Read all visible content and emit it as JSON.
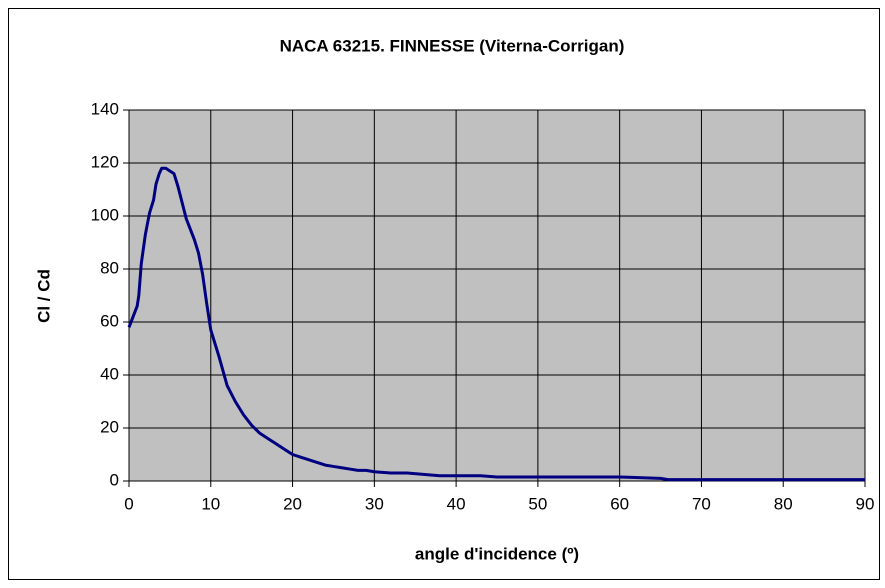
{
  "chart_data": {
    "type": "line",
    "title": "NACA 63215. FINNESSE (Viterna-Corrigan)",
    "xlabel": "angle d'incidence (º)",
    "ylabel": "Cl / Cd",
    "x": [
      0,
      0.5,
      1,
      1.2,
      1.5,
      2,
      2.5,
      3,
      3.3,
      3.7,
      4,
      4.5,
      5,
      5.5,
      6,
      7,
      8,
      8.5,
      9,
      9.5,
      10,
      11,
      12,
      13,
      14,
      15,
      16,
      17,
      18,
      19,
      20,
      21,
      22,
      23,
      24,
      25,
      26,
      27,
      28,
      29,
      30,
      32,
      34,
      36,
      38,
      40,
      43,
      45,
      50,
      55,
      60,
      65,
      66,
      70,
      80,
      90
    ],
    "values": [
      58,
      62,
      66,
      70,
      82,
      93,
      101,
      106,
      112,
      116,
      118,
      118,
      117,
      116,
      111,
      99,
      91,
      86,
      78,
      67,
      57,
      47,
      36,
      30,
      25,
      21,
      18,
      16,
      14,
      12,
      10,
      9,
      8,
      7,
      6,
      5.5,
      5,
      4.5,
      4,
      4,
      3.5,
      3,
      3,
      2.5,
      2,
      2,
      2,
      1.5,
      1.5,
      1.5,
      1.5,
      1,
      0.5,
      0.5,
      0.5,
      0.5
    ],
    "color": "#000080",
    "xlim": [
      0,
      90
    ],
    "xticks": [
      0,
      10,
      20,
      30,
      40,
      50,
      60,
      70,
      80,
      90
    ],
    "ylim": [
      0,
      140
    ],
    "yticks": [
      0,
      20,
      40,
      60,
      80,
      100,
      120,
      140
    ],
    "grid": true,
    "background": "#c0c0c0"
  }
}
